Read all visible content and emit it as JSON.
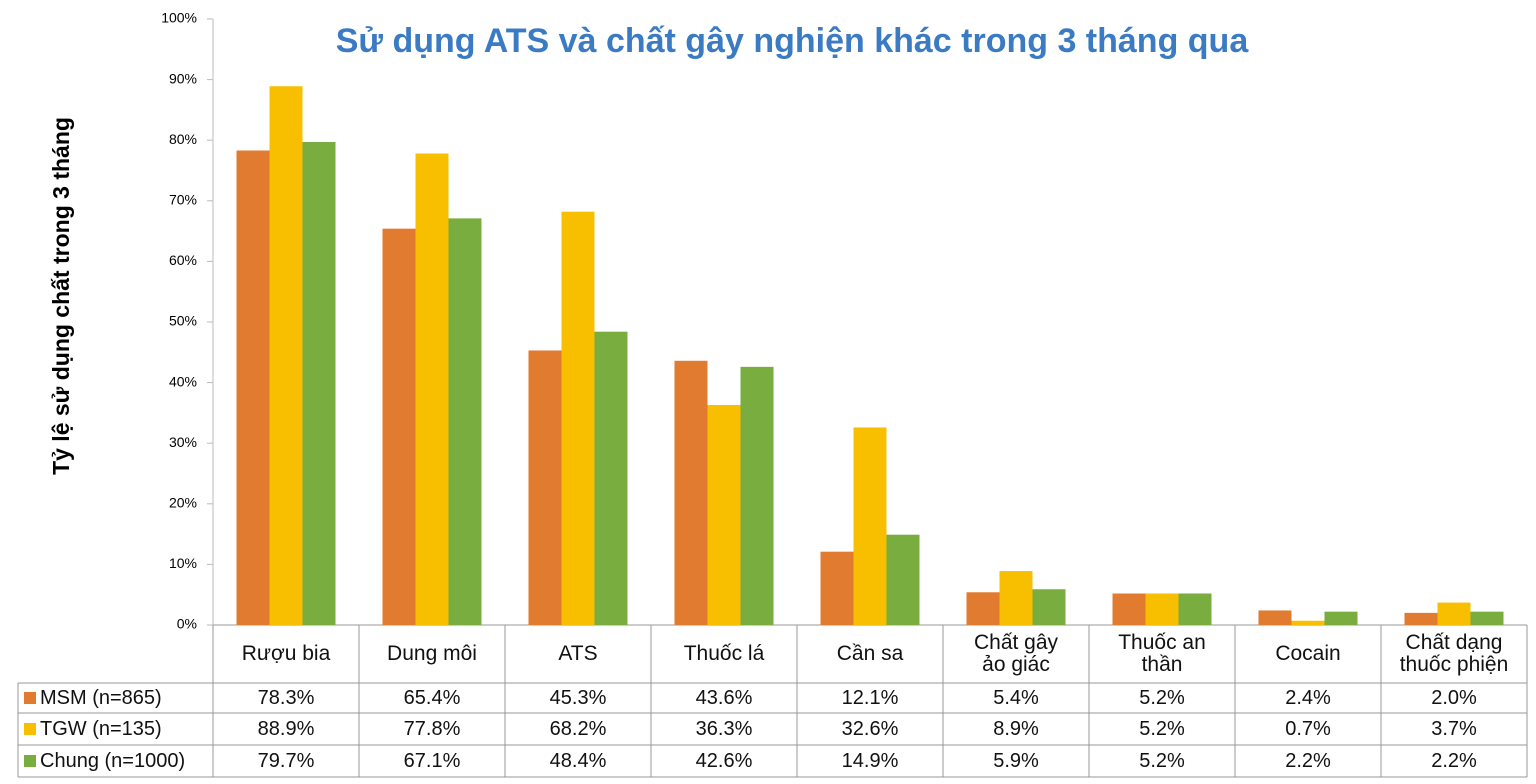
{
  "chart_data": {
    "type": "bar",
    "title": "Sử dụng ATS và chất gây nghiện khác trong 3 tháng qua",
    "y_label": "Tỷ lệ sử dụng chất trong 3 tháng",
    "categories": [
      "Rượu bia",
      "Dung môi",
      "ATS",
      "Thuốc lá",
      "Cần sa",
      "Chất gây\nảo giác",
      "Thuốc an\nthần",
      "Cocain",
      "Chất dạng\nthuốc phiện"
    ],
    "series": [
      {
        "name": "MSM (n=865)",
        "color": "#e07b2f",
        "values": [
          78.3,
          65.4,
          45.3,
          43.6,
          12.1,
          5.4,
          5.2,
          2.4,
          2.0
        ],
        "value_labels": [
          "78.3%",
          "65.4%",
          "45.3%",
          "43.6%",
          "12.1%",
          "5.4%",
          "5.2%",
          "2.4%",
          "2.0%"
        ]
      },
      {
        "name": "TGW (n=135)",
        "color": "#f7bf00",
        "values": [
          88.9,
          77.8,
          68.2,
          36.3,
          32.6,
          8.9,
          5.2,
          0.7,
          3.7
        ],
        "value_labels": [
          "88.9%",
          "77.8%",
          "68.2%",
          "36.3%",
          "32.6%",
          "8.9%",
          "5.2%",
          "0.7%",
          "3.7%"
        ]
      },
      {
        "name": "Chung (n=1000)",
        "color": "#79ad3f",
        "values": [
          79.7,
          67.1,
          48.4,
          42.6,
          14.9,
          5.9,
          5.2,
          2.2,
          2.2
        ],
        "value_labels": [
          "79.7%",
          "67.1%",
          "48.4%",
          "42.6%",
          "14.9%",
          "5.9%",
          "5.2%",
          "2.2%",
          "2.2%"
        ]
      }
    ],
    "ylim": [
      0,
      100
    ],
    "yticks": [
      {
        "value": 0,
        "label": "0%"
      },
      {
        "value": 10,
        "label": "10%"
      },
      {
        "value": 20,
        "label": "20%"
      },
      {
        "value": 30,
        "label": "30%"
      },
      {
        "value": 40,
        "label": "40%"
      },
      {
        "value": 50,
        "label": "50%"
      },
      {
        "value": 60,
        "label": "60%"
      },
      {
        "value": 70,
        "label": "70%"
      },
      {
        "value": 80,
        "label": "80%"
      },
      {
        "value": 90,
        "label": "90%"
      },
      {
        "value": 100,
        "label": "100%"
      }
    ],
    "grid": false
  }
}
